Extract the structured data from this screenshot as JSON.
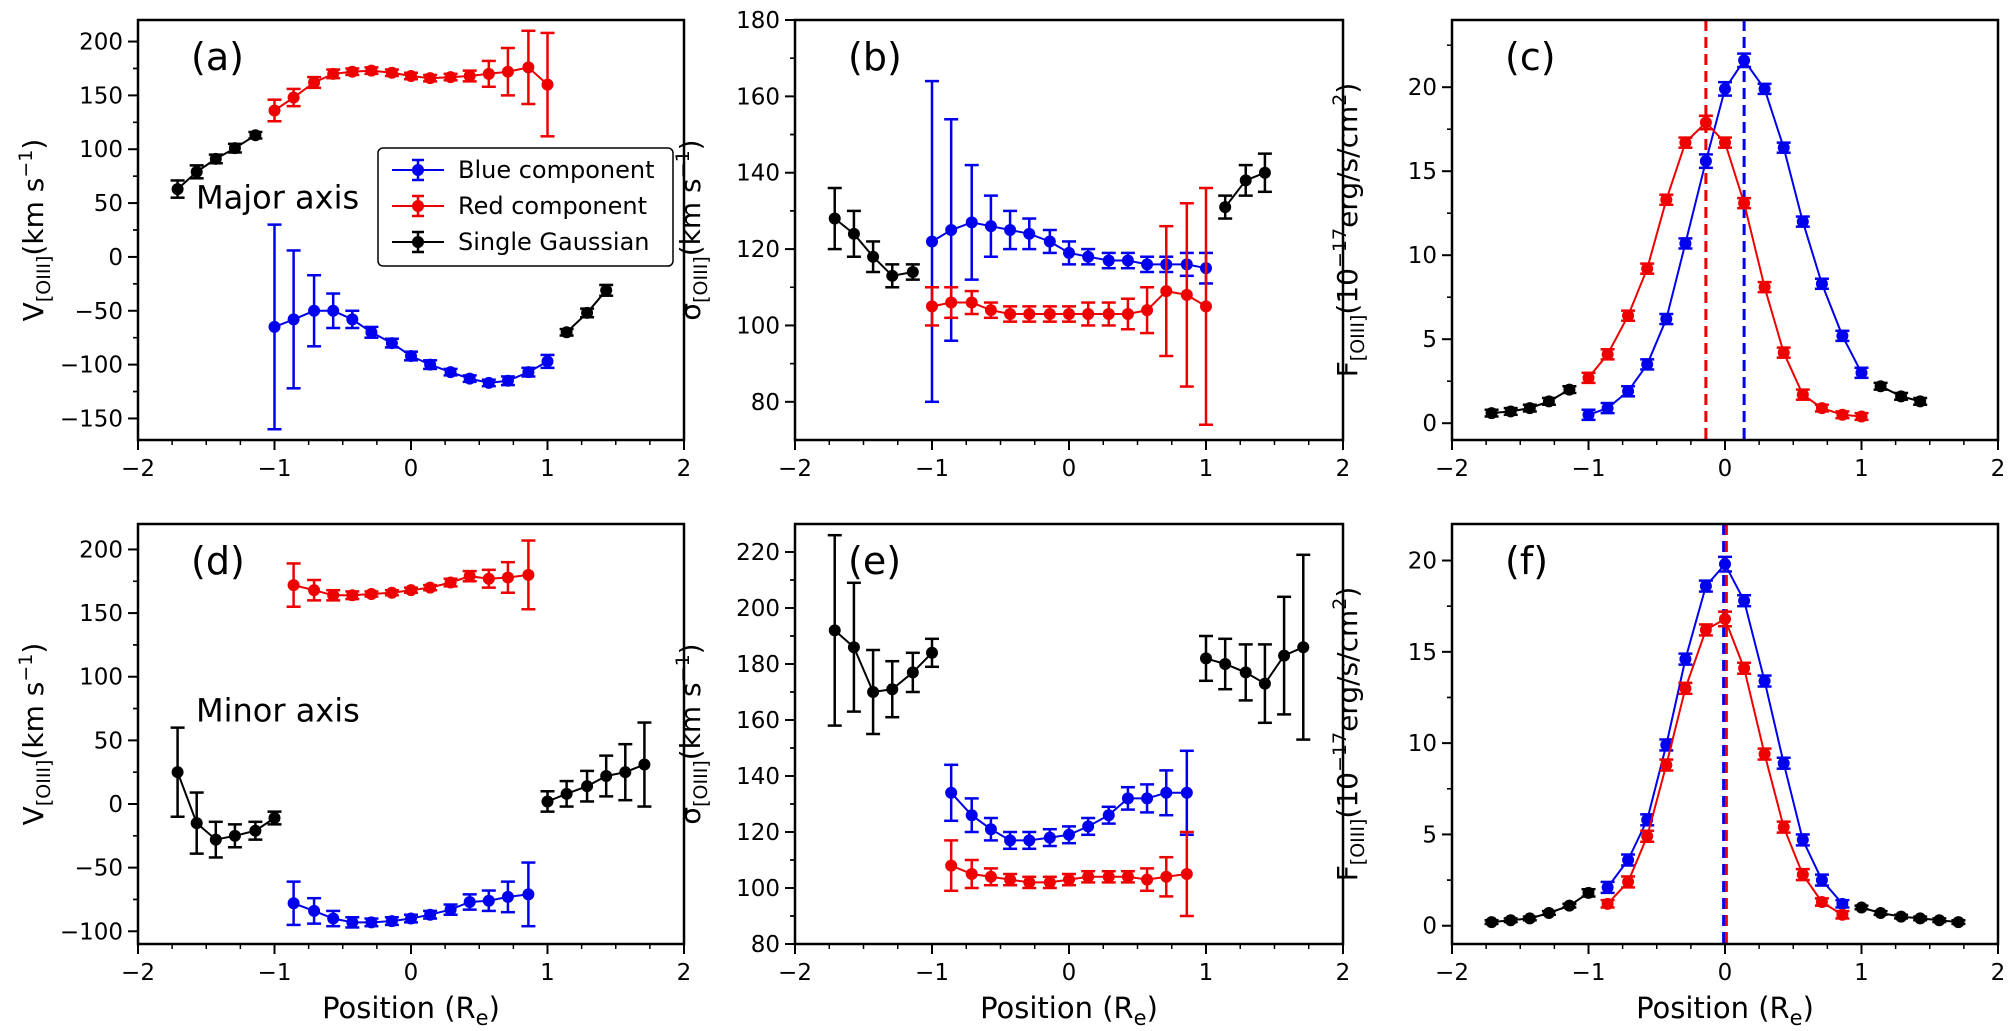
{
  "figure": {
    "colors": {
      "blue": "#0000ee",
      "red": "#ee0000",
      "black": "#000000"
    },
    "legend_entries": [
      "Blue component",
      "Red component",
      "Single Gaussian"
    ]
  },
  "chart_data": [
    {
      "id": "a",
      "panel_label": "(a)",
      "type": "scatter",
      "annotation": "Major axis",
      "xlim": [
        -2,
        2
      ],
      "ylim": [
        -170,
        220
      ],
      "xticks": [
        -2,
        -1,
        0,
        1,
        2
      ],
      "yticks": [
        -150,
        -100,
        -50,
        0,
        50,
        100,
        150,
        200
      ],
      "ylabel": "V[OIII](km s−1)",
      "xlabel": "",
      "legend": {
        "position": "right-center",
        "entries": [
          "Blue component",
          "Red component",
          "Single Gaussian"
        ]
      },
      "series": [
        {
          "name": "Blue component",
          "color": "#0000ee",
          "x": [
            -1.0,
            -0.86,
            -0.71,
            -0.57,
            -0.43,
            -0.29,
            -0.14,
            0.0,
            0.14,
            0.29,
            0.43,
            0.57,
            0.71,
            0.86,
            1.0
          ],
          "y": [
            -65,
            -58,
            -50,
            -50,
            -58,
            -70,
            -80,
            -92,
            -100,
            -107,
            -113,
            -117,
            -115,
            -107,
            -97
          ],
          "err": [
            95,
            64,
            33,
            16,
            8,
            5,
            4,
            4,
            4,
            3,
            3,
            3,
            4,
            4,
            6
          ]
        },
        {
          "name": "Red component",
          "color": "#ee0000",
          "x": [
            -1.0,
            -0.86,
            -0.71,
            -0.57,
            -0.43,
            -0.29,
            -0.14,
            0.0,
            0.14,
            0.29,
            0.43,
            0.57,
            0.71,
            0.86,
            1.0
          ],
          "y": [
            136,
            148,
            162,
            170,
            172,
            173,
            171,
            168,
            166,
            167,
            168,
            170,
            172,
            176,
            160
          ],
          "err": [
            10,
            8,
            5,
            4,
            3,
            3,
            3,
            3,
            3,
            3,
            5,
            12,
            22,
            34,
            48
          ]
        },
        {
          "name": "Single Gaussian",
          "color": "#000000",
          "x": [
            -1.71,
            -1.57,
            -1.43,
            -1.29,
            -1.14
          ],
          "y": [
            63,
            79,
            91,
            101,
            113
          ],
          "err": [
            8,
            6,
            4,
            4,
            3
          ]
        },
        {
          "name": "Single Gaussian",
          "color": "#000000",
          "x": [
            1.14,
            1.29,
            1.43
          ],
          "y": [
            -70,
            -52,
            -31
          ],
          "err": [
            3,
            4,
            5
          ]
        }
      ]
    },
    {
      "id": "b",
      "panel_label": "(b)",
      "type": "scatter",
      "xlim": [
        -2,
        2
      ],
      "ylim": [
        70,
        180
      ],
      "xticks": [
        -2,
        -1,
        0,
        1,
        2
      ],
      "yticks": [
        80,
        100,
        120,
        140,
        160,
        180
      ],
      "ylabel": "σ[OIII](km s−1)",
      "xlabel": "",
      "series": [
        {
          "name": "Blue component",
          "color": "#0000ee",
          "x": [
            -1.0,
            -0.86,
            -0.71,
            -0.57,
            -0.43,
            -0.29,
            -0.14,
            0.0,
            0.14,
            0.29,
            0.43,
            0.57,
            0.71,
            0.86,
            1.0
          ],
          "y": [
            122,
            125,
            127,
            126,
            125,
            124,
            122,
            119,
            118,
            117,
            117,
            116,
            116,
            116,
            115
          ],
          "err": [
            42,
            29,
            15,
            8,
            5,
            4,
            3,
            3,
            2,
            2,
            2,
            2,
            2,
            3,
            4
          ]
        },
        {
          "name": "Red component",
          "color": "#ee0000",
          "x": [
            -1.0,
            -0.86,
            -0.71,
            -0.57,
            -0.43,
            -0.29,
            -0.14,
            0.0,
            0.14,
            0.29,
            0.43,
            0.57,
            0.71,
            0.86,
            1.0
          ],
          "y": [
            105,
            106,
            106,
            104,
            103,
            103,
            103,
            103,
            103,
            103,
            103,
            104,
            109,
            108,
            105
          ],
          "err": [
            5,
            4,
            3,
            2,
            2,
            2,
            2,
            2,
            3,
            3,
            4,
            6,
            17,
            24,
            31
          ]
        },
        {
          "name": "Single Gaussian",
          "color": "#000000",
          "x": [
            -1.71,
            -1.57,
            -1.43,
            -1.29,
            -1.14
          ],
          "y": [
            128,
            124,
            118,
            113,
            114
          ],
          "err": [
            8,
            6,
            4,
            3,
            2
          ]
        },
        {
          "name": "Single Gaussian",
          "color": "#000000",
          "x": [
            1.14,
            1.29,
            1.43
          ],
          "y": [
            131,
            138,
            140
          ],
          "err": [
            3,
            4,
            5
          ]
        }
      ]
    },
    {
      "id": "c",
      "panel_label": "(c)",
      "type": "line",
      "xlim": [
        -2,
        2
      ],
      "ylim": [
        -1,
        24
      ],
      "xticks": [
        -2,
        -1,
        0,
        1,
        2
      ],
      "yticks": [
        0,
        5,
        10,
        15,
        20
      ],
      "ylabel": "F[OIII](10−17erg/s/cm2)",
      "xlabel": "",
      "vlines": [
        {
          "x": -0.14,
          "color": "#ee0000"
        },
        {
          "x": 0.14,
          "color": "#0000ee"
        }
      ],
      "series": [
        {
          "name": "Blue component",
          "color": "#0000ee",
          "x": [
            -1.0,
            -0.86,
            -0.71,
            -0.57,
            -0.43,
            -0.29,
            -0.14,
            0.0,
            0.14,
            0.29,
            0.43,
            0.57,
            0.71,
            0.86,
            1.0
          ],
          "y": [
            0.5,
            0.9,
            1.9,
            3.5,
            6.2,
            10.7,
            15.6,
            19.9,
            21.6,
            19.9,
            16.4,
            12.0,
            8.3,
            5.2,
            3.0
          ],
          "err": [
            0.3,
            0.3,
            0.3,
            0.3,
            0.3,
            0.3,
            0.4,
            0.4,
            0.4,
            0.3,
            0.3,
            0.3,
            0.3,
            0.3,
            0.3
          ]
        },
        {
          "name": "Red component",
          "color": "#ee0000",
          "x": [
            -1.0,
            -0.86,
            -0.71,
            -0.57,
            -0.43,
            -0.29,
            -0.14,
            0.0,
            0.14,
            0.29,
            0.43,
            0.57,
            0.71,
            0.86,
            1.0
          ],
          "y": [
            2.7,
            4.1,
            6.4,
            9.2,
            13.3,
            16.7,
            17.9,
            16.7,
            13.1,
            8.1,
            4.2,
            1.7,
            0.9,
            0.5,
            0.4
          ],
          "err": [
            0.3,
            0.3,
            0.3,
            0.3,
            0.3,
            0.3,
            0.4,
            0.3,
            0.3,
            0.3,
            0.3,
            0.3,
            0.2,
            0.2,
            0.2
          ]
        },
        {
          "name": "Single Gaussian",
          "color": "#000000",
          "x": [
            -1.71,
            -1.57,
            -1.43,
            -1.29,
            -1.14
          ],
          "y": [
            0.6,
            0.7,
            0.9,
            1.3,
            2.0
          ],
          "err": [
            0.2,
            0.2,
            0.2,
            0.2,
            0.2
          ]
        },
        {
          "name": "Single Gaussian",
          "color": "#000000",
          "x": [
            1.14,
            1.29,
            1.43
          ],
          "y": [
            2.2,
            1.6,
            1.3
          ],
          "err": [
            0.2,
            0.2,
            0.2
          ]
        }
      ]
    },
    {
      "id": "d",
      "panel_label": "(d)",
      "type": "scatter",
      "annotation": "Minor axis",
      "xlim": [
        -2,
        2
      ],
      "ylim": [
        -110,
        220
      ],
      "xticks": [
        -2,
        -1,
        0,
        1,
        2
      ],
      "yticks": [
        -100,
        -50,
        0,
        50,
        100,
        150,
        200
      ],
      "ylabel": "V[OIII](km s−1)",
      "xlabel": "Position (Re)",
      "series": [
        {
          "name": "Blue component",
          "color": "#0000ee",
          "x": [
            -0.86,
            -0.71,
            -0.57,
            -0.43,
            -0.29,
            -0.14,
            0.0,
            0.14,
            0.29,
            0.43,
            0.57,
            0.71,
            0.86
          ],
          "y": [
            -78,
            -84,
            -90,
            -93,
            -93,
            -92,
            -90,
            -87,
            -83,
            -77,
            -76,
            -73,
            -71
          ],
          "err": [
            17,
            10,
            6,
            4,
            3,
            3,
            3,
            3,
            4,
            6,
            8,
            12,
            25
          ]
        },
        {
          "name": "Red component",
          "color": "#ee0000",
          "x": [
            -0.86,
            -0.71,
            -0.57,
            -0.43,
            -0.29,
            -0.14,
            0.0,
            0.14,
            0.29,
            0.43,
            0.57,
            0.71,
            0.86
          ],
          "y": [
            172,
            168,
            164,
            164,
            165,
            166,
            168,
            170,
            174,
            179,
            177,
            178,
            180
          ],
          "err": [
            17,
            8,
            4,
            3,
            2,
            2,
            2,
            2,
            3,
            4,
            7,
            12,
            27
          ]
        },
        {
          "name": "Single Gaussian",
          "color": "#000000",
          "x": [
            -1.71,
            -1.57,
            -1.43,
            -1.29,
            -1.14,
            -1.0
          ],
          "y": [
            25,
            -15,
            -28,
            -25,
            -21,
            -11
          ],
          "err": [
            35,
            24,
            14,
            9,
            7,
            5
          ]
        },
        {
          "name": "Single Gaussian",
          "color": "#000000",
          "x": [
            1.0,
            1.14,
            1.29,
            1.43,
            1.57,
            1.71
          ],
          "y": [
            2,
            8,
            14,
            22,
            25,
            31
          ],
          "err": [
            8,
            10,
            12,
            16,
            22,
            33
          ]
        }
      ]
    },
    {
      "id": "e",
      "panel_label": "(e)",
      "type": "scatter",
      "xlim": [
        -2,
        2
      ],
      "ylim": [
        80,
        230
      ],
      "xticks": [
        -2,
        -1,
        0,
        1,
        2
      ],
      "yticks": [
        80,
        100,
        120,
        140,
        160,
        180,
        200,
        220
      ],
      "ylabel": "σ[OIII](km s−1)",
      "xlabel": "Position (Re)",
      "series": [
        {
          "name": "Blue component",
          "color": "#0000ee",
          "x": [
            -0.86,
            -0.71,
            -0.57,
            -0.43,
            -0.29,
            -0.14,
            0.0,
            0.14,
            0.29,
            0.43,
            0.57,
            0.71,
            0.86
          ],
          "y": [
            134,
            126,
            121,
            117,
            117,
            118,
            119,
            122,
            126,
            132,
            132,
            134,
            134
          ],
          "err": [
            10,
            6,
            4,
            3,
            3,
            3,
            3,
            3,
            3,
            4,
            5,
            8,
            15
          ]
        },
        {
          "name": "Red component",
          "color": "#ee0000",
          "x": [
            -0.86,
            -0.71,
            -0.57,
            -0.43,
            -0.29,
            -0.14,
            0.0,
            0.14,
            0.29,
            0.43,
            0.57,
            0.71,
            0.86
          ],
          "y": [
            108,
            105,
            104,
            103,
            102,
            102,
            103,
            104,
            104,
            104,
            103,
            104,
            105
          ],
          "err": [
            9,
            5,
            3,
            2,
            2,
            2,
            2,
            2,
            2,
            2,
            4,
            7,
            15
          ]
        },
        {
          "name": "Single Gaussian",
          "color": "#000000",
          "x": [
            -1.71,
            -1.57,
            -1.43,
            -1.29,
            -1.14,
            -1.0
          ],
          "y": [
            192,
            186,
            170,
            171,
            177,
            184
          ],
          "err": [
            34,
            23,
            15,
            10,
            7,
            5
          ]
        },
        {
          "name": "Single Gaussian",
          "color": "#000000",
          "x": [
            1.0,
            1.14,
            1.29,
            1.43,
            1.57,
            1.71
          ],
          "y": [
            182,
            180,
            177,
            173,
            183,
            186
          ],
          "err": [
            8,
            9,
            10,
            14,
            21,
            33
          ]
        }
      ]
    },
    {
      "id": "f",
      "panel_label": "(f)",
      "type": "line",
      "xlim": [
        -2,
        2
      ],
      "ylim": [
        -1,
        22
      ],
      "xticks": [
        -2,
        -1,
        0,
        1,
        2
      ],
      "yticks": [
        0,
        5,
        10,
        15,
        20
      ],
      "ylabel": "F[OIII](10−17erg/s/cm2)",
      "xlabel": "Position (Re)",
      "vlines": [
        {
          "x": -0.01,
          "color": "#0000ee"
        },
        {
          "x": 0.01,
          "color": "#ee0000"
        }
      ],
      "series": [
        {
          "name": "Blue component",
          "color": "#0000ee",
          "x": [
            -0.86,
            -0.71,
            -0.57,
            -0.43,
            -0.29,
            -0.14,
            0.0,
            0.14,
            0.29,
            0.43,
            0.57,
            0.71,
            0.86
          ],
          "y": [
            2.1,
            3.6,
            5.8,
            9.9,
            14.6,
            18.6,
            19.8,
            17.8,
            13.4,
            8.9,
            4.7,
            2.5,
            1.2
          ],
          "err": [
            0.3,
            0.3,
            0.3,
            0.3,
            0.3,
            0.3,
            0.4,
            0.3,
            0.3,
            0.3,
            0.3,
            0.3,
            0.2
          ]
        },
        {
          "name": "Red component",
          "color": "#ee0000",
          "x": [
            -0.86,
            -0.71,
            -0.57,
            -0.43,
            -0.29,
            -0.14,
            0.0,
            0.14,
            0.29,
            0.43,
            0.57,
            0.71,
            0.86
          ],
          "y": [
            1.2,
            2.4,
            4.9,
            8.8,
            13.0,
            16.2,
            16.8,
            14.1,
            9.4,
            5.4,
            2.8,
            1.3,
            0.6
          ],
          "err": [
            0.2,
            0.3,
            0.3,
            0.3,
            0.3,
            0.3,
            0.4,
            0.3,
            0.3,
            0.3,
            0.3,
            0.2,
            0.2
          ]
        },
        {
          "name": "Single Gaussian",
          "color": "#000000",
          "x": [
            -1.71,
            -1.57,
            -1.43,
            -1.29,
            -1.14,
            -1.0
          ],
          "y": [
            0.2,
            0.3,
            0.4,
            0.7,
            1.1,
            1.8
          ],
          "err": [
            0.1,
            0.1,
            0.1,
            0.1,
            0.1,
            0.2
          ]
        },
        {
          "name": "Single Gaussian",
          "color": "#000000",
          "x": [
            1.0,
            1.14,
            1.29,
            1.43,
            1.57,
            1.71
          ],
          "y": [
            1.0,
            0.7,
            0.5,
            0.4,
            0.3,
            0.2
          ],
          "err": [
            0.1,
            0.1,
            0.1,
            0.1,
            0.1,
            0.1
          ]
        }
      ]
    }
  ]
}
